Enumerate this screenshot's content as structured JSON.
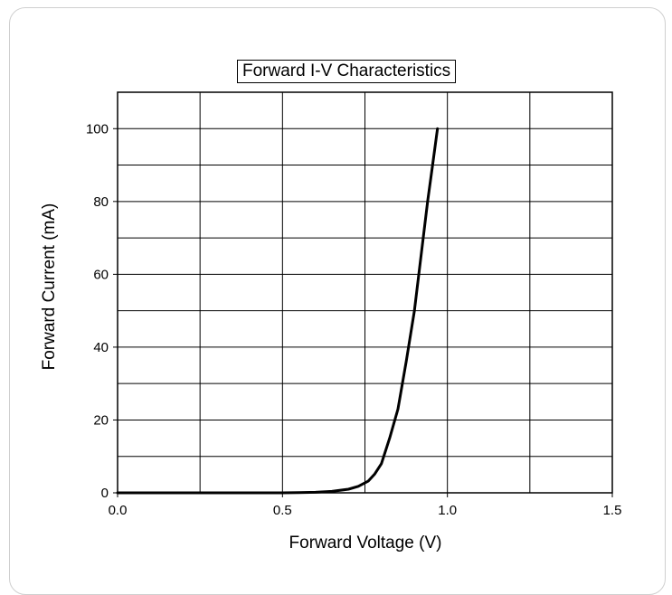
{
  "chart_data": {
    "type": "line",
    "title": "Forward I-V Characteristics",
    "xlabel": "Forward Voltage (V)",
    "ylabel": "Forward Current (mA)",
    "xlim": [
      0.0,
      1.5
    ],
    "ylim": [
      0,
      110
    ],
    "xticks": [
      0.0,
      0.5,
      1.0,
      1.5
    ],
    "xtick_labels": [
      "0.0",
      "0.5",
      "1.0",
      "1.5"
    ],
    "yticks": [
      0,
      20,
      40,
      60,
      80,
      100
    ],
    "ytick_labels": [
      "0",
      "20",
      "40",
      "60",
      "80",
      "100"
    ],
    "grid": true,
    "series": [
      {
        "color": "#000000",
        "x": [
          0.0,
          0.3,
          0.5,
          0.55,
          0.6,
          0.65,
          0.7,
          0.73,
          0.76,
          0.78,
          0.8,
          0.825,
          0.85,
          0.875,
          0.9,
          0.92,
          0.94,
          0.955,
          0.97
        ],
        "y": [
          0,
          0,
          0,
          0.05,
          0.15,
          0.4,
          1.0,
          1.8,
          3.2,
          5.2,
          8.0,
          15.0,
          23.0,
          36.0,
          50.0,
          65.0,
          80.0,
          90.0,
          100.0
        ]
      }
    ]
  }
}
